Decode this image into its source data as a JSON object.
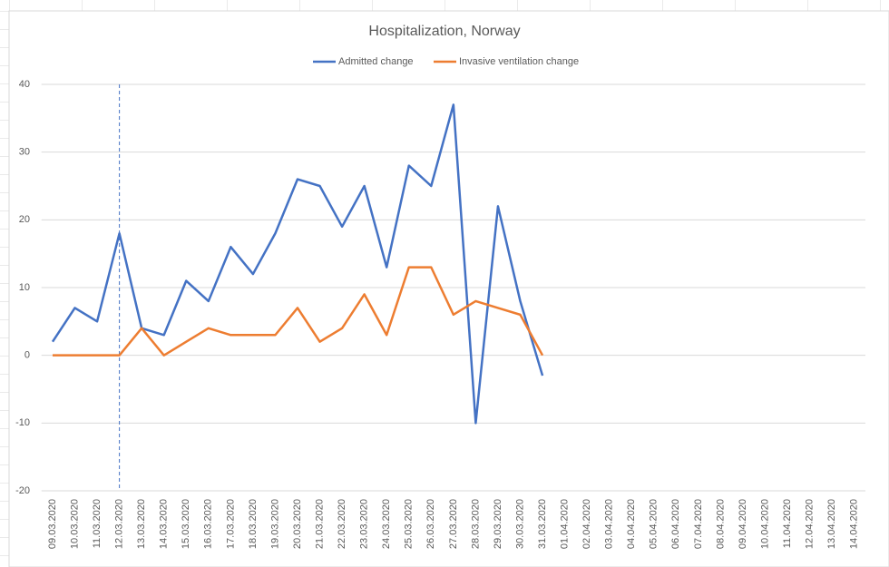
{
  "chart_data": {
    "type": "line",
    "title": "Hospitalization, Norway",
    "categories": [
      "09.03.2020",
      "10.03.2020",
      "11.03.2020",
      "12.03.2020",
      "13.03.2020",
      "14.03.2020",
      "15.03.2020",
      "16.03.2020",
      "17.03.2020",
      "18.03.2020",
      "19.03.2020",
      "20.03.2020",
      "21.03.2020",
      "22.03.2020",
      "23.03.2020",
      "24.03.2020",
      "25.03.2020",
      "26.03.2020",
      "27.03.2020",
      "28.03.2020",
      "29.03.2020",
      "30.03.2020",
      "31.03.2020",
      "01.04.2020",
      "02.04.2020",
      "03.04.2020",
      "04.04.2020",
      "05.04.2020",
      "06.04.2020",
      "07.04.2020",
      "08.04.2020",
      "09.04.2020",
      "10.04.2020",
      "11.04.2020",
      "12.04.2020",
      "13.04.2020",
      "14.04.2020"
    ],
    "series": [
      {
        "name": "Admitted change",
        "color": "#4472c4",
        "values": [
          2,
          7,
          5,
          18,
          4,
          3,
          11,
          8,
          16,
          12,
          18,
          26,
          25,
          19,
          25,
          13,
          28,
          25,
          37,
          -10,
          22,
          8,
          -3,
          null,
          null,
          null,
          null,
          null,
          null,
          null,
          null,
          null,
          null,
          null,
          null,
          null,
          null
        ]
      },
      {
        "name": "Invasive ventilation change",
        "color": "#ed7d31",
        "values": [
          0,
          0,
          0,
          0,
          4,
          0,
          2,
          4,
          3,
          3,
          3,
          7,
          2,
          4,
          9,
          3,
          13,
          13,
          6,
          8,
          7,
          6,
          0,
          null,
          null,
          null,
          null,
          null,
          null,
          null,
          null,
          null,
          null,
          null,
          null,
          null,
          null
        ]
      }
    ],
    "ylim": [
      -20,
      40
    ],
    "yticks": [
      -20,
      -10,
      0,
      10,
      20,
      30,
      40
    ],
    "grid": true,
    "legend": "top",
    "vline": "12.03.2020"
  }
}
